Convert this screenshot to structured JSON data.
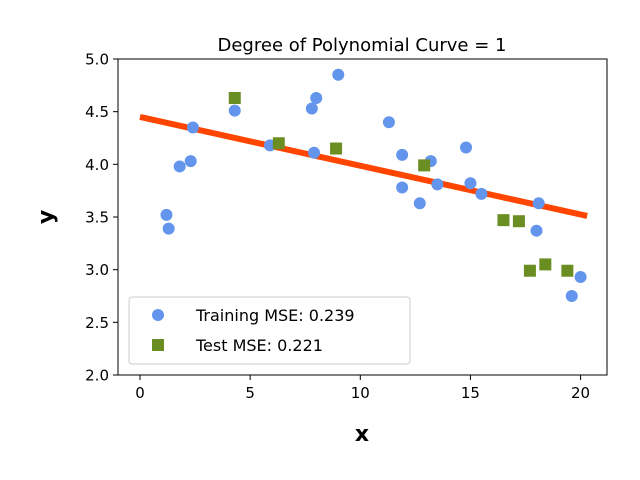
{
  "chart_data": {
    "type": "scatter",
    "title": "Degree of Polynomial Curve = 1",
    "xlabel": "x",
    "ylabel": "y",
    "xlim": [
      -1,
      21.2
    ],
    "ylim": [
      2.0,
      5.0
    ],
    "xticks": [
      0,
      5,
      10,
      15,
      20
    ],
    "xtick_labels": [
      "0",
      "5",
      "10",
      "15",
      "20"
    ],
    "yticks": [
      2.0,
      2.5,
      3.0,
      3.5,
      4.0,
      4.5,
      5.0
    ],
    "ytick_labels": [
      "2.0",
      "2.5",
      "3.0",
      "3.5",
      "4.0",
      "4.5",
      "5.0"
    ],
    "grid": false,
    "legend_position": "lower-left",
    "series": [
      {
        "name": "Training MSE: 0.239",
        "kind": "scatter",
        "marker": "circle",
        "color": "#6495ED",
        "x": [
          1.2,
          1.3,
          1.8,
          2.3,
          2.4,
          4.3,
          5.9,
          7.8,
          7.9,
          8.0,
          9.0,
          11.3,
          11.9,
          11.9,
          12.7,
          13.2,
          13.5,
          14.8,
          15.0,
          15.5,
          18.0,
          18.1,
          19.6,
          20.0
        ],
        "y": [
          3.52,
          3.39,
          3.98,
          4.03,
          4.35,
          4.51,
          4.18,
          4.53,
          4.11,
          4.63,
          4.85,
          4.4,
          4.09,
          3.78,
          3.63,
          4.03,
          3.81,
          4.16,
          3.82,
          3.72,
          3.37,
          3.63,
          2.75,
          2.93
        ]
      },
      {
        "name": "Test MSE: 0.221",
        "kind": "scatter",
        "marker": "square",
        "color": "#6B8E23",
        "x": [
          4.3,
          6.3,
          8.9,
          12.9,
          16.5,
          17.2,
          17.7,
          18.4,
          19.4
        ],
        "y": [
          4.63,
          4.2,
          4.15,
          3.99,
          3.47,
          3.46,
          2.99,
          3.05,
          2.99
        ]
      },
      {
        "kind": "line",
        "color": "#FF4500",
        "x": [
          0,
          20.3
        ],
        "y": [
          4.45,
          3.51
        ]
      }
    ]
  }
}
